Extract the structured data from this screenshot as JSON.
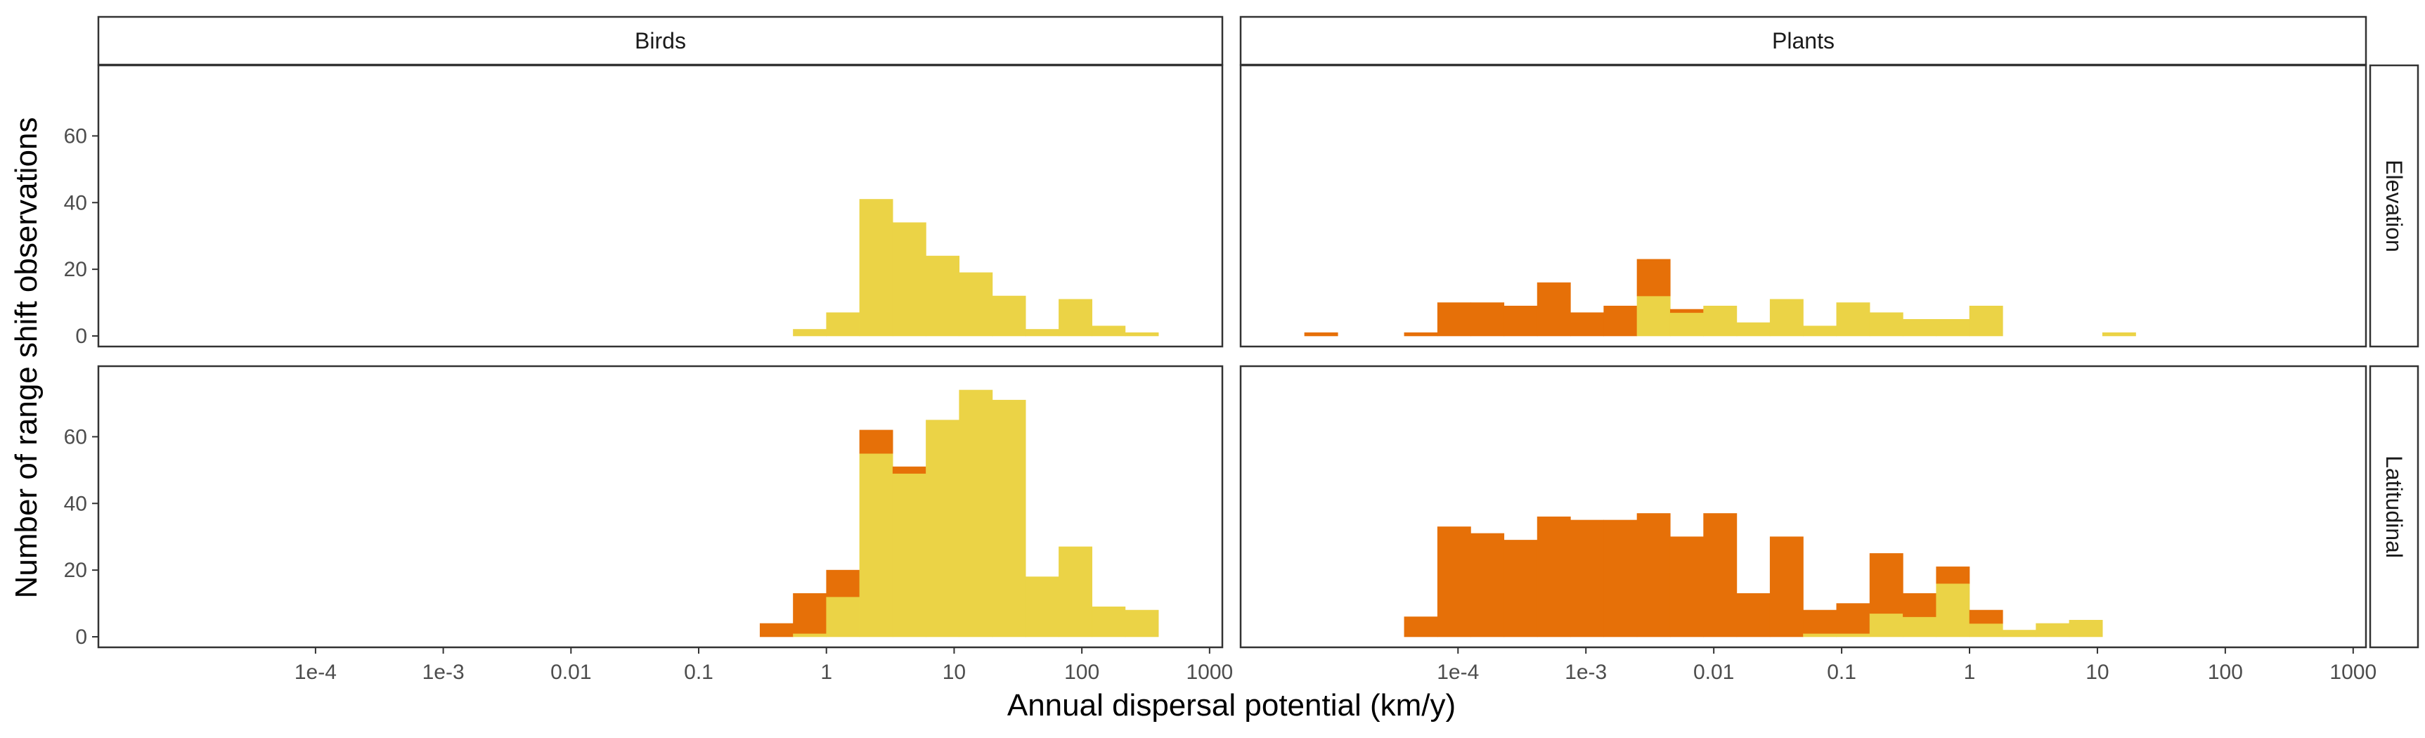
{
  "chart_data": {
    "type": "bar",
    "subtype": "faceted stacked histogram",
    "xlabel": "Annual dispersal potential (km/y)",
    "ylabel": "Number of range shift observations",
    "x_scale": "log10",
    "bin_width_log10": 0.26,
    "xlim_log10": [
      -5.7,
      3.1
    ],
    "ylim": [
      0,
      78
    ],
    "y_ticks": [
      0,
      20,
      40,
      60
    ],
    "x_ticks": [
      {
        "value": -4,
        "label": "1e-4"
      },
      {
        "value": -3,
        "label": "1e-3"
      },
      {
        "value": -2,
        "label": "0.01"
      },
      {
        "value": -1,
        "label": "0.1"
      },
      {
        "value": 0,
        "label": "1"
      },
      {
        "value": 1,
        "label": "10"
      },
      {
        "value": 2,
        "label": "100"
      },
      {
        "value": 3,
        "label": "1000"
      }
    ],
    "columns": [
      "Birds",
      "Plants"
    ],
    "rows": [
      "Elevation",
      "Latitudinal"
    ],
    "grid": false,
    "legend": "none",
    "colors": {
      "orange": "#E67008",
      "yellow": "#EBD346"
    },
    "panels": [
      {
        "column": "Birds",
        "row": "Elevation",
        "bins": [
          {
            "x": -0.13,
            "orange": 0,
            "yellow": 2
          },
          {
            "x": 0.13,
            "orange": 0,
            "yellow": 7
          },
          {
            "x": 0.39,
            "orange": 0,
            "yellow": 41
          },
          {
            "x": 0.65,
            "orange": 0,
            "yellow": 34
          },
          {
            "x": 0.91,
            "orange": 0,
            "yellow": 24
          },
          {
            "x": 1.17,
            "orange": 0,
            "yellow": 19
          },
          {
            "x": 1.43,
            "orange": 0,
            "yellow": 12
          },
          {
            "x": 1.69,
            "orange": 0,
            "yellow": 2
          },
          {
            "x": 1.95,
            "orange": 0,
            "yellow": 11
          },
          {
            "x": 2.21,
            "orange": 0,
            "yellow": 3
          },
          {
            "x": 2.47,
            "orange": 0,
            "yellow": 1
          }
        ]
      },
      {
        "column": "Plants",
        "row": "Elevation",
        "bins": [
          {
            "x": -5.07,
            "orange": 1,
            "yellow": 0
          },
          {
            "x": -4.29,
            "orange": 1,
            "yellow": 0
          },
          {
            "x": -4.03,
            "orange": 10,
            "yellow": 0
          },
          {
            "x": -3.77,
            "orange": 10,
            "yellow": 0
          },
          {
            "x": -3.51,
            "orange": 9,
            "yellow": 0
          },
          {
            "x": -3.25,
            "orange": 16,
            "yellow": 0
          },
          {
            "x": -2.99,
            "orange": 7,
            "yellow": 0
          },
          {
            "x": -2.73,
            "orange": 9,
            "yellow": 0
          },
          {
            "x": -2.47,
            "orange": 11,
            "yellow": 12
          },
          {
            "x": -2.21,
            "orange": 1,
            "yellow": 7
          },
          {
            "x": -1.95,
            "orange": 0,
            "yellow": 9
          },
          {
            "x": -1.69,
            "orange": 0,
            "yellow": 4
          },
          {
            "x": -1.43,
            "orange": 0,
            "yellow": 11
          },
          {
            "x": -1.17,
            "orange": 0,
            "yellow": 3
          },
          {
            "x": -0.91,
            "orange": 0,
            "yellow": 10
          },
          {
            "x": -0.65,
            "orange": 0,
            "yellow": 7
          },
          {
            "x": -0.39,
            "orange": 0,
            "yellow": 5
          },
          {
            "x": -0.13,
            "orange": 0,
            "yellow": 5
          },
          {
            "x": 0.13,
            "orange": 0,
            "yellow": 9
          },
          {
            "x": 1.17,
            "orange": 0,
            "yellow": 1
          }
        ]
      },
      {
        "column": "Birds",
        "row": "Latitudinal",
        "bins": [
          {
            "x": -0.39,
            "orange": 4,
            "yellow": 0
          },
          {
            "x": -0.13,
            "orange": 12,
            "yellow": 1
          },
          {
            "x": 0.13,
            "orange": 8,
            "yellow": 12
          },
          {
            "x": 0.39,
            "orange": 7,
            "yellow": 55
          },
          {
            "x": 0.65,
            "orange": 2,
            "yellow": 49
          },
          {
            "x": 0.91,
            "orange": 0,
            "yellow": 65
          },
          {
            "x": 1.17,
            "orange": 0,
            "yellow": 74
          },
          {
            "x": 1.43,
            "orange": 0,
            "yellow": 71
          },
          {
            "x": 1.69,
            "orange": 0,
            "yellow": 18
          },
          {
            "x": 1.95,
            "orange": 0,
            "yellow": 27
          },
          {
            "x": 2.21,
            "orange": 0,
            "yellow": 9
          },
          {
            "x": 2.47,
            "orange": 0,
            "yellow": 8
          }
        ]
      },
      {
        "column": "Plants",
        "row": "Latitudinal",
        "bins": [
          {
            "x": -4.29,
            "orange": 6,
            "yellow": 0
          },
          {
            "x": -4.03,
            "orange": 33,
            "yellow": 0
          },
          {
            "x": -3.77,
            "orange": 31,
            "yellow": 0
          },
          {
            "x": -3.51,
            "orange": 29,
            "yellow": 0
          },
          {
            "x": -3.25,
            "orange": 36,
            "yellow": 0
          },
          {
            "x": -2.99,
            "orange": 35,
            "yellow": 0
          },
          {
            "x": -2.73,
            "orange": 35,
            "yellow": 0
          },
          {
            "x": -2.47,
            "orange": 37,
            "yellow": 0
          },
          {
            "x": -2.21,
            "orange": 30,
            "yellow": 0
          },
          {
            "x": -1.95,
            "orange": 37,
            "yellow": 0
          },
          {
            "x": -1.69,
            "orange": 13,
            "yellow": 0
          },
          {
            "x": -1.43,
            "orange": 30,
            "yellow": 0
          },
          {
            "x": -1.17,
            "orange": 7,
            "yellow": 1
          },
          {
            "x": -0.91,
            "orange": 9,
            "yellow": 1
          },
          {
            "x": -0.65,
            "orange": 18,
            "yellow": 7
          },
          {
            "x": -0.39,
            "orange": 7,
            "yellow": 6
          },
          {
            "x": -0.13,
            "orange": 5,
            "yellow": 16
          },
          {
            "x": 0.13,
            "orange": 4,
            "yellow": 4
          },
          {
            "x": 0.39,
            "orange": 0,
            "yellow": 2
          },
          {
            "x": 0.65,
            "orange": 0,
            "yellow": 4
          },
          {
            "x": 0.91,
            "orange": 0,
            "yellow": 5
          }
        ]
      }
    ]
  }
}
